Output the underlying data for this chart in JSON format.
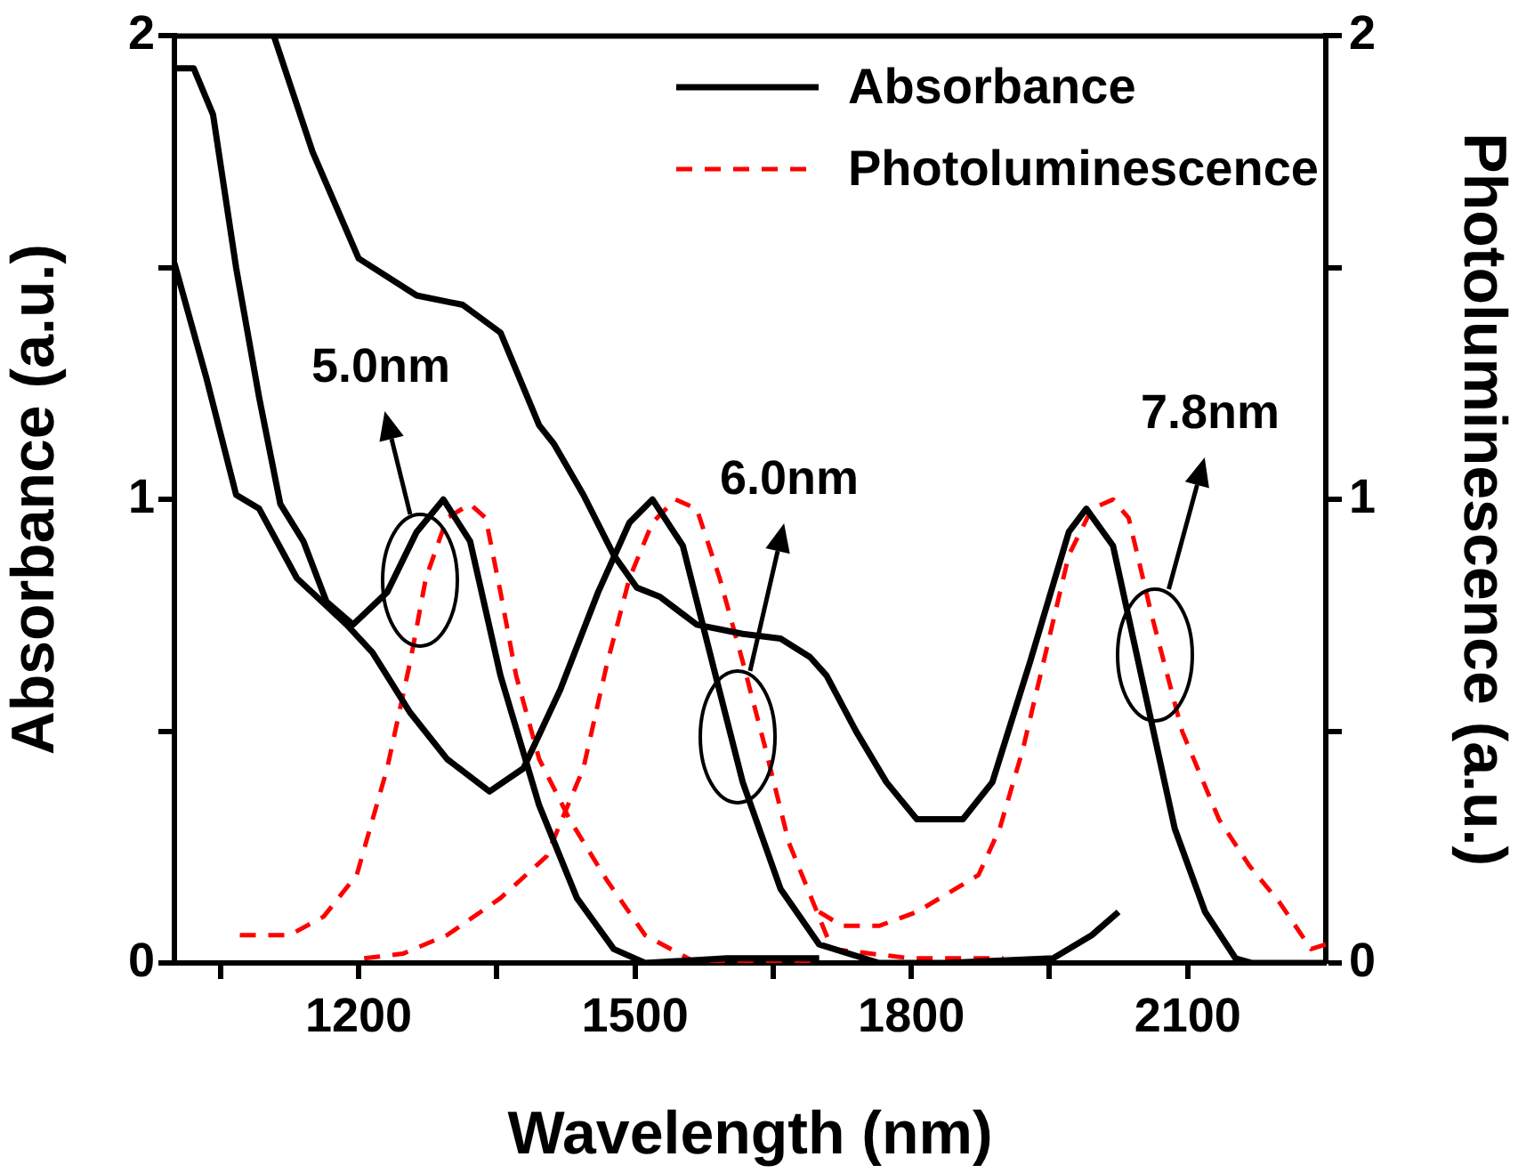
{
  "chart_data": {
    "type": "line",
    "xlabel": "Wavelength (nm)",
    "ylabel": "Absorbance (a.u.)",
    "y2label": "Photoluminescence (a.u.)",
    "xlim": [
      1000,
      2250
    ],
    "xticks": [
      {
        "value": 1050,
        "label": null
      },
      1200,
      {
        "value": 1350,
        "label": null
      },
      1500,
      {
        "value": 1650,
        "label": null
      },
      1800,
      {
        "value": 1950,
        "label": null
      },
      2100
    ],
    "ylim": [
      0,
      2
    ],
    "yticks": [
      0,
      {
        "value": 0.5,
        "label": null
      },
      1,
      {
        "value": 1.5,
        "label": null
      },
      2
    ],
    "y2lim": [
      0,
      2
    ],
    "y2ticks": [
      0,
      {
        "value": 0.5,
        "label": null
      },
      1,
      {
        "value": 1.5,
        "label": null
      },
      2
    ],
    "grid": false,
    "legend": "top right",
    "marker": "none",
    "series": [
      {
        "name": "Absorbance",
        "color": "#000000",
        "line_style": "solid",
        "x": [
          1000,
          1021,
          1042,
          1067,
          1092,
          1115,
          1140,
          1165,
          1194,
          1231,
          1263,
          1292,
          1321,
          1354,
          1396,
          1437,
          1477,
          1511,
          1600,
          1700
        ],
        "values": [
          1.93,
          1.93,
          1.83,
          1.5,
          1.22,
          0.99,
          0.91,
          0.78,
          0.73,
          0.8,
          0.93,
          1.0,
          0.91,
          0.62,
          0.34,
          0.14,
          0.03,
          0.0,
          0.01,
          0.01
        ]
      },
      {
        "color": "#000000",
        "line_style": "solid",
        "x": [
          1000,
          1035,
          1067,
          1092,
          1133,
          1187,
          1215,
          1256,
          1296,
          1342,
          1379,
          1419,
          1460,
          1494,
          1519,
          1552,
          1585,
          1617,
          1658,
          1700,
          1765,
          1838,
          1954,
          1996,
          2025
        ],
        "values": [
          1.51,
          1.26,
          1.01,
          0.98,
          0.83,
          0.73,
          0.67,
          0.54,
          0.44,
          0.37,
          0.42,
          0.59,
          0.8,
          0.95,
          1.0,
          0.9,
          0.64,
          0.39,
          0.16,
          0.04,
          0.0,
          0.0,
          0.01,
          0.06,
          0.11
        ]
      },
      {
        "color": "#000000",
        "line_style": "solid",
        "x": [
          1108,
          1150,
          1200,
          1263,
          1313,
          1354,
          1396,
          1412,
          1444,
          1477,
          1502,
          1527,
          1567,
          1617,
          1658,
          1690,
          1708,
          1740,
          1773,
          1806,
          1856,
          1888,
          1929,
          1971,
          1990,
          2019,
          2053,
          2086,
          2119,
          2152,
          2170,
          2250
        ],
        "values": [
          2.0,
          1.75,
          1.52,
          1.44,
          1.42,
          1.36,
          1.16,
          1.12,
          1.01,
          0.88,
          0.81,
          0.79,
          0.73,
          0.71,
          0.7,
          0.66,
          0.62,
          0.5,
          0.39,
          0.31,
          0.31,
          0.39,
          0.65,
          0.93,
          0.98,
          0.9,
          0.59,
          0.29,
          0.11,
          0.01,
          0.0,
          0.0
        ]
      },
      {
        "name": "Photoluminescence",
        "color": "#ff0000",
        "line_style": "dashed",
        "axis": "y2",
        "x": [
          1071,
          1125,
          1162,
          1198,
          1231,
          1256,
          1273,
          1296,
          1321,
          1338,
          1354,
          1371,
          1396,
          1429,
          1469,
          1511,
          1567,
          1700
        ],
        "values": [
          0.06,
          0.06,
          0.1,
          0.19,
          0.42,
          0.65,
          0.83,
          0.96,
          0.99,
          0.96,
          0.8,
          0.62,
          0.44,
          0.31,
          0.18,
          0.06,
          0.0,
          0.0
        ]
      },
      {
        "color": "#ff0000",
        "line_style": "dashed",
        "axis": "y2",
        "x": [
          1206,
          1248,
          1296,
          1354,
          1404,
          1444,
          1469,
          1494,
          1519,
          1544,
          1567,
          1592,
          1617,
          1642,
          1667,
          1714,
          1800,
          1900
        ],
        "values": [
          0.01,
          0.02,
          0.06,
          0.14,
          0.23,
          0.42,
          0.64,
          0.83,
          0.95,
          1.0,
          0.98,
          0.83,
          0.65,
          0.46,
          0.26,
          0.03,
          0.01,
          0.01
        ]
      },
      {
        "color": "#ff0000",
        "line_style": "dashed",
        "axis": "y2",
        "x": [
          1700,
          1725,
          1765,
          1806,
          1848,
          1873,
          1896,
          1921,
          1946,
          1971,
          1996,
          2019,
          2036,
          2061,
          2094,
          2134,
          2167,
          2200,
          2234,
          2250
        ],
        "values": [
          0.11,
          0.08,
          0.08,
          0.11,
          0.16,
          0.19,
          0.29,
          0.46,
          0.67,
          0.88,
          0.98,
          1.0,
          0.96,
          0.75,
          0.5,
          0.31,
          0.21,
          0.13,
          0.03,
          0.04
        ]
      }
    ],
    "annotations": [
      "5.0nm",
      {
        "text": "6.0nm",
        "x": 1625,
        "y": 0.63
      },
      "7.8nm"
    ]
  }
}
